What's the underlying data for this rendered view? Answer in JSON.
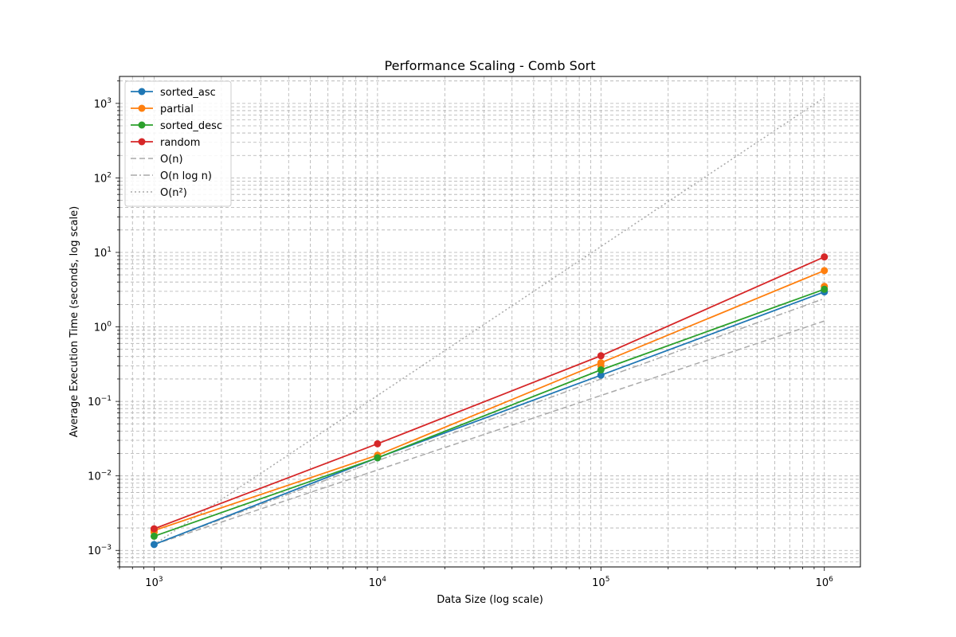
{
  "chart_data": {
    "type": "line",
    "title": "Performance Scaling - Comb Sort",
    "xlabel": "Data Size (log scale)",
    "ylabel": "Average Execution Time (seconds, log scale)",
    "xscale": "log",
    "yscale": "log",
    "grid": true,
    "legend_position": "top-left",
    "xlim": [
      700,
      1450000
    ],
    "ylim": [
      0.0006,
      2300
    ],
    "x": [
      1000,
      10000,
      100000,
      1000000
    ],
    "x_tick_labels": [
      {
        "base": "10",
        "exp": "3"
      },
      {
        "base": "10",
        "exp": "4"
      },
      {
        "base": "10",
        "exp": "5"
      },
      {
        "base": "10",
        "exp": "6"
      }
    ],
    "y_tick_labels": [
      {
        "base": "10",
        "exp": "−3",
        "value": 0.001
      },
      {
        "base": "10",
        "exp": "−2",
        "value": 0.01
      },
      {
        "base": "10",
        "exp": "−1",
        "value": 0.1
      },
      {
        "base": "10",
        "exp": "0",
        "value": 1
      },
      {
        "base": "10",
        "exp": "1",
        "value": 10
      },
      {
        "base": "10",
        "exp": "2",
        "value": 100
      },
      {
        "base": "10",
        "exp": "3",
        "value": 1000
      }
    ],
    "series": [
      {
        "name": "sorted_asc",
        "color": "#1f77b4",
        "style": "solid",
        "marker": true,
        "values": [
          0.0012,
          0.0175,
          0.225,
          2.95
        ]
      },
      {
        "name": "partial",
        "color": "#ff7f0e",
        "style": "solid",
        "marker": true,
        "values": [
          0.00185,
          0.019,
          0.33,
          5.7
        ]
      },
      {
        "name": "sorted_desc",
        "color": "#2ca02c",
        "style": "solid",
        "marker": true,
        "values": [
          0.00155,
          0.0175,
          0.265,
          3.2
        ]
      },
      {
        "name": "random",
        "color": "#d62728",
        "style": "solid",
        "marker": true,
        "values": [
          0.00195,
          0.027,
          0.41,
          8.7
        ]
      },
      {
        "name": "O(n)",
        "color": "#a9a9a9",
        "style": "dashed",
        "marker": false,
        "values": [
          0.0012,
          0.012,
          0.12,
          1.2
        ]
      },
      {
        "name": "O(n log n)",
        "color": "#a9a9a9",
        "style": "dashdot",
        "marker": false,
        "values": [
          0.0012,
          0.016,
          0.2,
          2.4
        ]
      },
      {
        "name": "O(n²)",
        "color": "#a9a9a9",
        "style": "dotted",
        "marker": false,
        "values": [
          0.0012,
          0.12,
          12,
          1200
        ]
      }
    ],
    "extra_markers": [
      {
        "x": 1000,
        "y": 0.00175,
        "color": "#ff7f0e"
      },
      {
        "x": 100000,
        "y": 0.3,
        "color": "#ff7f0e"
      },
      {
        "x": 1000000,
        "y": 3.5,
        "color": "#ff7f0e"
      }
    ]
  }
}
